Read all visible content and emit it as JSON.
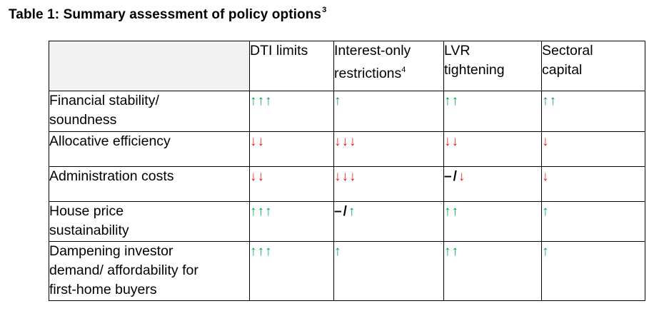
{
  "title": {
    "text": "Table 1: Summary assessment of policy options",
    "footnote": "3"
  },
  "colors": {
    "up": "#00a651",
    "down": "#ee1c1c",
    "header_fill": "#f2f2f2"
  },
  "table": {
    "columns": [
      {
        "lines": [
          "DTI limits"
        ],
        "footnote": ""
      },
      {
        "lines": [
          "Interest-only",
          "restrictions"
        ],
        "footnote": "4"
      },
      {
        "lines": [
          "LVR",
          "tightening"
        ],
        "footnote": ""
      },
      {
        "lines": [
          "Sectoral",
          "capital"
        ],
        "footnote": ""
      }
    ],
    "rows": [
      {
        "lines": [
          "Financial stability/",
          "soundness"
        ],
        "cells": [
          "↑↑↑",
          "↑",
          "↑↑",
          "↑↑"
        ]
      },
      {
        "lines": [
          "Allocative efficiency"
        ],
        "cells": [
          "↓↓",
          "↓↓↓",
          "↓↓",
          "↓"
        ]
      },
      {
        "lines": [
          "Administration costs"
        ],
        "cells": [
          "↓↓",
          "↓↓↓",
          "–/↓",
          "↓"
        ]
      },
      {
        "lines": [
          "House price",
          "sustainability"
        ],
        "cells": [
          "↑↑↑",
          "–/↑",
          "↑↑",
          "↑"
        ]
      },
      {
        "lines": [
          "Dampening investor",
          "demand/ affordability for",
          "first-home buyers"
        ],
        "cells": [
          "↑↑↑",
          "↑",
          "↑↑",
          "↑"
        ]
      }
    ]
  }
}
